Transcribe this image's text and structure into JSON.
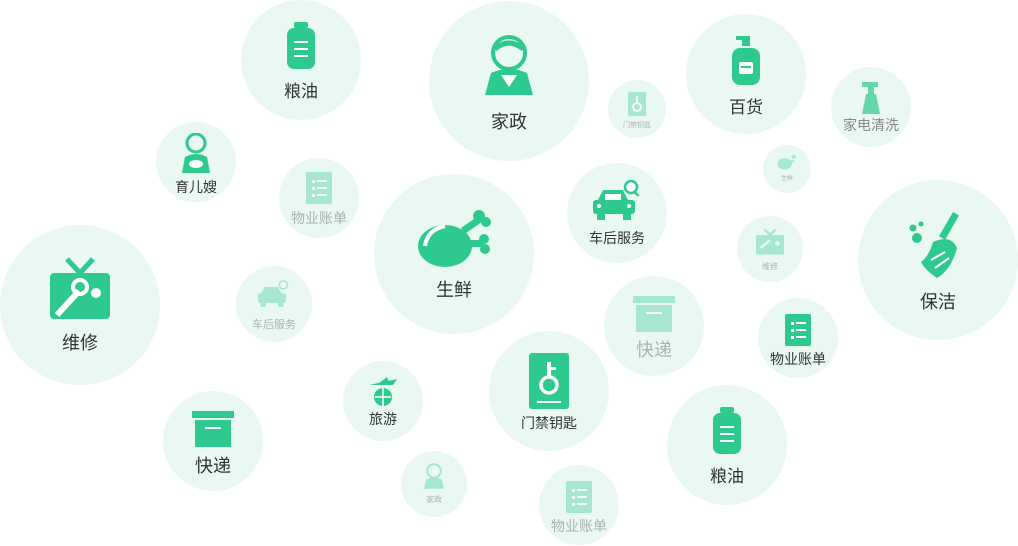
{
  "colors": {
    "accent": "#2ec98e",
    "bubble": "#e9f8f3",
    "text": "#333333"
  },
  "services": {
    "grain_oil_top": "粮油",
    "housekeeping_top": "家政",
    "department_top": "百货",
    "access_key_small": "门禁钥匙",
    "appliance_clean": "家电清洗",
    "nanny": "育儿嫂",
    "property_bill_faint": "物业账单",
    "fresh": "生鲜",
    "car_service": "车后服务",
    "fresh_small": "生鲜",
    "repair_small": "维修",
    "repair": "维修",
    "car_service_faint": "车后服务",
    "express_faint": "快递",
    "cleaning": "保洁",
    "property_bill": "物业账单",
    "travel": "旅游",
    "access_key": "门禁钥匙",
    "express": "快递",
    "grain_oil_bottom": "粮油",
    "housekeeping_small": "家政",
    "property_bill_bottom": "物业账单"
  }
}
